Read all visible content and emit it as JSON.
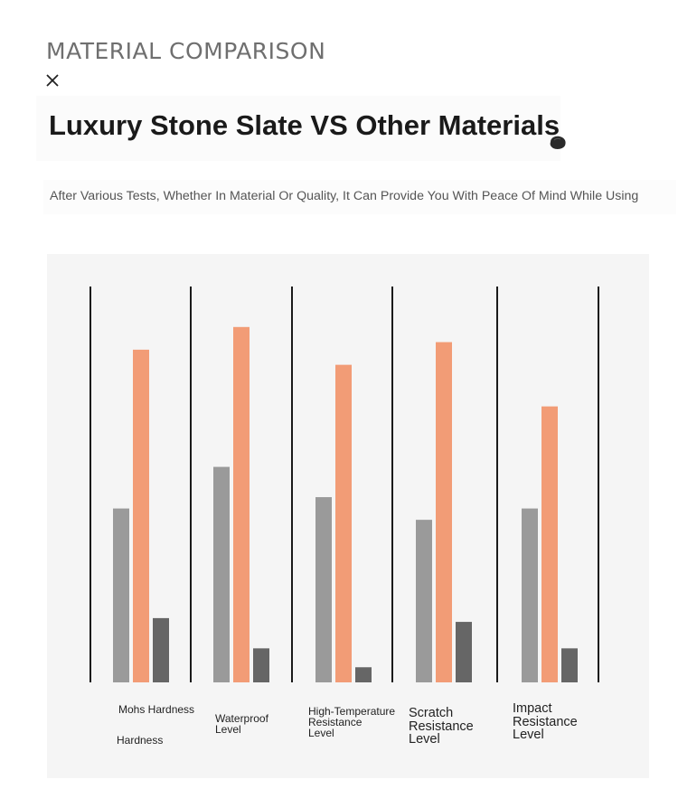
{
  "header": {
    "heading": "MATERIAL COMPARISON",
    "title": "Luxury Stone Slate VS Other Materials",
    "subtitle": "After Various Tests, Whether In Material Or Quality, It Can Provide You With Peace Of Mind While Using"
  },
  "icons": {
    "close": "close-icon",
    "stone": "stone-icon"
  },
  "colors": {
    "series_gray": "#9a9a9a",
    "series_orange": "#f29c76",
    "series_dark": "#666666",
    "divider": "#1a1a1a",
    "panel": "#f5f5f5"
  },
  "chart_data": {
    "type": "bar",
    "categories": [
      "Mohs Hardness",
      "Waterproof Level",
      "High-Temperature Resistance Level",
      "Scratch Resistance Level",
      "Impact Resistance Level"
    ],
    "category_lines": [
      [
        "Mohs Hardness"
      ],
      [
        "Waterproof",
        "Level"
      ],
      [
        "High-Temperature",
        "Resistance",
        "Level"
      ],
      [
        "Scratch",
        "Resistance",
        "Level"
      ],
      [
        "Impact",
        "Resistance",
        "Level"
      ]
    ],
    "extra_label": "Hardness",
    "series": [
      {
        "values": [
          46,
          57,
          49,
          43,
          46
        ]
      },
      {
        "values": [
          88,
          94,
          84,
          90,
          73
        ]
      },
      {
        "values": [
          17,
          9,
          4,
          16,
          9
        ]
      }
    ],
    "ylim": [
      0,
      100
    ],
    "grid": false,
    "legend": "none",
    "axis_ticks": "none"
  }
}
